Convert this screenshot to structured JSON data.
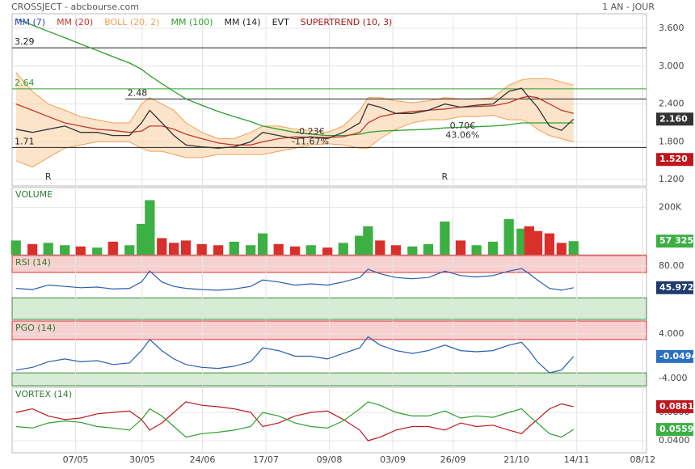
{
  "chart_data": {
    "type": "stock",
    "title": "CROSSJECT - abcbourse.com",
    "period": "1 AN - JOUR",
    "xlim": [
      0,
      100
    ],
    "xticks": [
      {
        "value": 10,
        "label": "07/05"
      },
      {
        "value": 20.5,
        "label": "30/05"
      },
      {
        "value": 30,
        "label": "24/06"
      },
      {
        "value": 40,
        "label": "17/07"
      },
      {
        "value": 50,
        "label": "09/08"
      },
      {
        "value": 60,
        "label": "03/09"
      },
      {
        "value": 69.5,
        "label": "26/09"
      },
      {
        "value": 79.5,
        "label": "21/10"
      },
      {
        "value": 89,
        "label": "14/11"
      },
      {
        "value": 99.4,
        "label": "08/12"
      }
    ],
    "x": [
      0.6,
      3.2,
      5.7,
      8.3,
      10.8,
      13.4,
      15.9,
      18.5,
      20.4,
      21.7,
      23.6,
      25.5,
      27.4,
      29.9,
      32.5,
      35,
      37.6,
      39.5,
      42,
      44.6,
      47.1,
      49.7,
      52.2,
      54.8,
      56.1,
      58,
      60.5,
      63.1,
      65.6,
      68.2,
      70.7,
      73.2,
      75.8,
      78.3,
      80.3,
      81.5,
      82.8,
      84.7,
      86.6,
      88.5
    ],
    "panels": [
      {
        "type": "price",
        "legend": [
          {
            "name": "MM (7)",
            "color": "#2a3fbf"
          },
          {
            "name": "MM (20)",
            "color": "#c0392b"
          },
          {
            "name": "BOLL (20, 2)",
            "color": "#f0a050"
          },
          {
            "name": "MM (100)",
            "color": "#2ca02c"
          },
          {
            "name": "MM (14)",
            "color": "#222222"
          },
          {
            "name": "EVT",
            "color": "#222222"
          },
          {
            "name": "SUPERTREND (10, 3)",
            "color": "#a01818"
          }
        ],
        "ylim": [
          1.1,
          3.83
        ],
        "yticks": [
          {
            "value": 1.2,
            "label": "1.200"
          },
          {
            "value": 1.8,
            "label": "1.800"
          },
          {
            "value": 2.4,
            "label": "2.400"
          },
          {
            "value": 3.0,
            "label": "3.000"
          },
          {
            "value": 3.6,
            "label": "3.600"
          }
        ],
        "band": {
          "color": "#fbd9b5",
          "upper": [
            2.9,
            2.6,
            2.4,
            2.3,
            2.2,
            2.15,
            2.1,
            2.1,
            2.4,
            2.5,
            2.4,
            2.3,
            2.1,
            1.95,
            1.85,
            1.85,
            1.95,
            2.05,
            2.05,
            2.0,
            1.98,
            1.95,
            2.05,
            2.3,
            2.5,
            2.5,
            2.45,
            2.42,
            2.45,
            2.5,
            2.48,
            2.48,
            2.5,
            2.7,
            2.78,
            2.8,
            2.8,
            2.8,
            2.75,
            2.7
          ],
          "lower": [
            1.5,
            1.4,
            1.55,
            1.7,
            1.75,
            1.8,
            1.8,
            1.8,
            1.7,
            1.65,
            1.65,
            1.6,
            1.55,
            1.55,
            1.6,
            1.6,
            1.6,
            1.6,
            1.65,
            1.7,
            1.75,
            1.77,
            1.75,
            1.7,
            1.7,
            1.85,
            2.0,
            2.1,
            2.15,
            2.15,
            2.2,
            2.2,
            2.22,
            2.15,
            2.15,
            2.1,
            2.0,
            1.9,
            1.85,
            1.8
          ]
        },
        "series": [
          {
            "color": "#2ca02c",
            "values": [
              3.75,
              3.65,
              3.55,
              3.45,
              3.35,
              3.25,
              3.15,
              3.05,
              2.95,
              2.85,
              2.72,
              2.6,
              2.48,
              2.38,
              2.28,
              2.2,
              2.12,
              2.05,
              2.0,
              1.95,
              1.92,
              1.9,
              1.9,
              1.92,
              1.95,
              1.97,
              1.98,
              1.99,
              2.0,
              2.02,
              2.03,
              2.04,
              2.05,
              2.07,
              2.1,
              2.1,
              2.1,
              2.1,
              2.1,
              2.1
            ]
          },
          {
            "color": "#c0392b",
            "values": [
              2.4,
              2.3,
              2.2,
              2.1,
              2.05,
              2.0,
              1.98,
              1.95,
              1.97,
              2.05,
              2.05,
              2.0,
              1.92,
              1.85,
              1.78,
              1.75,
              1.75,
              1.8,
              1.85,
              1.88,
              1.87,
              1.87,
              1.88,
              1.95,
              2.1,
              2.2,
              2.25,
              2.28,
              2.3,
              2.32,
              2.35,
              2.36,
              2.37,
              2.42,
              2.5,
              2.52,
              2.5,
              2.4,
              2.3,
              2.25
            ]
          },
          {
            "color": "#333333",
            "values": [
              2.0,
              1.95,
              2.0,
              2.05,
              1.95,
              1.95,
              1.9,
              1.9,
              2.1,
              2.3,
              2.1,
              1.9,
              1.75,
              1.72,
              1.7,
              1.72,
              1.8,
              1.95,
              1.9,
              1.85,
              1.88,
              1.85,
              1.95,
              2.1,
              2.4,
              2.35,
              2.25,
              2.25,
              2.3,
              2.4,
              2.35,
              2.38,
              2.4,
              2.6,
              2.65,
              2.5,
              2.35,
              2.05,
              1.98,
              2.16
            ]
          }
        ],
        "levels": [
          {
            "value": 3.29,
            "label": "3.29",
            "color": "#222222",
            "start": 0
          },
          {
            "value": 2.64,
            "label": "2.64",
            "color": "#2ca02c",
            "start": 0
          },
          {
            "value": 2.48,
            "label": "2.48",
            "color": "#222222",
            "start": 17.8
          },
          {
            "value": 1.71,
            "label": "1.71",
            "color": "#222222",
            "start": 0
          }
        ],
        "annotations": [
          {
            "text": "-0.23€",
            "x": 47,
            "y": 1.96
          },
          {
            "text": "-11.67%",
            "x": 47,
            "y": 1.8
          },
          {
            "text": "0.70€",
            "x": 71,
            "y": 2.05
          },
          {
            "text": "43.06%",
            "x": 71,
            "y": 1.9
          },
          {
            "text": "R",
            "x": 5.7,
            "y": 1.24
          },
          {
            "text": "R",
            "x": 68.2,
            "y": 1.24
          }
        ],
        "markers": [
          {
            "value": 2.16,
            "label": "2.160",
            "color": "#333333"
          },
          {
            "value": 1.52,
            "label": "1.520",
            "color": "#c0161b"
          }
        ]
      },
      {
        "type": "bar",
        "name": "VOLUME",
        "ylim": [
          0,
          283000
        ],
        "yticks": [
          {
            "value": 200000,
            "label": "200K"
          }
        ],
        "up": "#3cb043",
        "down": "#d9302c",
        "values": [
          60000,
          45000,
          50000,
          40000,
          35000,
          30000,
          55000,
          40000,
          130000,
          230000,
          70000,
          50000,
          60000,
          45000,
          40000,
          55000,
          40000,
          90000,
          45000,
          35000,
          40000,
          30000,
          50000,
          80000,
          120000,
          60000,
          40000,
          35000,
          45000,
          140000,
          60000,
          40000,
          55000,
          150000,
          110000,
          120000,
          100000,
          90000,
          50000,
          57325
        ],
        "markers": [
          {
            "value": 57325,
            "label": "57 325",
            "color": "#3cb043"
          }
        ]
      },
      {
        "type": "line",
        "name": "RSI (14)",
        "ylim": [
          -3.8,
          96.5
        ],
        "yticks": [
          {
            "value": 80,
            "label": "80.00"
          }
        ],
        "bands": {
          "upper": 70,
          "lower": 30
        },
        "series": [
          {
            "color": "#2a5db0",
            "values": [
              45,
              43,
              50,
              48,
              46,
              47,
              44,
              45,
              55,
              72,
              55,
              48,
              45,
              43,
              42,
              44,
              48,
              58,
              55,
              50,
              52,
              50,
              55,
              62,
              75,
              68,
              62,
              60,
              62,
              72,
              65,
              63,
              65,
              72,
              76,
              68,
              58,
              45,
              42,
              45.972
            ]
          }
        ],
        "markers": [
          {
            "value": 45.972,
            "label": "45.972",
            "color": "#1e3a6e"
          }
        ]
      },
      {
        "type": "line",
        "name": "PGO (14)",
        "ylim": [
          -5.31,
          6.33
        ],
        "yticks": [
          {
            "value": 4,
            "label": "4.000"
          },
          {
            "value": -4,
            "label": "-4.000"
          }
        ],
        "bands": {
          "upper": 3,
          "lower": -3
        },
        "series": [
          {
            "color": "#2a5db0",
            "values": [
              -2.5,
              -2,
              -1,
              -0.5,
              -1,
              -0.8,
              -1.5,
              -1.2,
              1,
              3,
              1,
              -0.5,
              -1.5,
              -2,
              -2.2,
              -1.8,
              -1,
              1.5,
              1,
              0,
              0,
              -0.5,
              0.5,
              1.5,
              3.5,
              2,
              1,
              0.5,
              1,
              2,
              1,
              0.8,
              1,
              2,
              2.5,
              1,
              -1,
              -3,
              -2.5,
              -0.0494
            ]
          }
        ],
        "markers": [
          {
            "value": -0.0494,
            "label": "-0.0494",
            "color": "#2a6fc0"
          }
        ]
      },
      {
        "type": "line",
        "name": "VORTEX (14)",
        "ylim": [
          0.0229,
          0.1154
        ],
        "yticks": [
          {
            "value": 0.08,
            "label": "0.0800"
          },
          {
            "value": 0.04,
            "label": "0.0400"
          }
        ],
        "series": [
          {
            "color": "#c0161b",
            "values": [
              0.08,
              0.085,
              0.075,
              0.07,
              0.072,
              0.078,
              0.08,
              0.082,
              0.07,
              0.055,
              0.065,
              0.08,
              0.095,
              0.09,
              0.088,
              0.085,
              0.08,
              0.06,
              0.065,
              0.075,
              0.08,
              0.082,
              0.07,
              0.055,
              0.04,
              0.045,
              0.055,
              0.06,
              0.06,
              0.055,
              0.065,
              0.06,
              0.062,
              0.055,
              0.05,
              0.06,
              0.07,
              0.085,
              0.092,
              0.0881
            ]
          },
          {
            "color": "#2ca02c",
            "values": [
              0.06,
              0.058,
              0.065,
              0.068,
              0.066,
              0.06,
              0.058,
              0.055,
              0.07,
              0.085,
              0.075,
              0.06,
              0.045,
              0.05,
              0.052,
              0.055,
              0.06,
              0.08,
              0.075,
              0.065,
              0.06,
              0.058,
              0.068,
              0.085,
              0.095,
              0.09,
              0.08,
              0.075,
              0.075,
              0.082,
              0.072,
              0.075,
              0.073,
              0.08,
              0.085,
              0.075,
              0.065,
              0.05,
              0.045,
              0.0559
            ]
          }
        ],
        "markers": [
          {
            "value": 0.0881,
            "label": "0.0881",
            "color": "#c0161b"
          },
          {
            "value": 0.0559,
            "label": "0.0559",
            "color": "#3cb043"
          }
        ]
      }
    ]
  }
}
